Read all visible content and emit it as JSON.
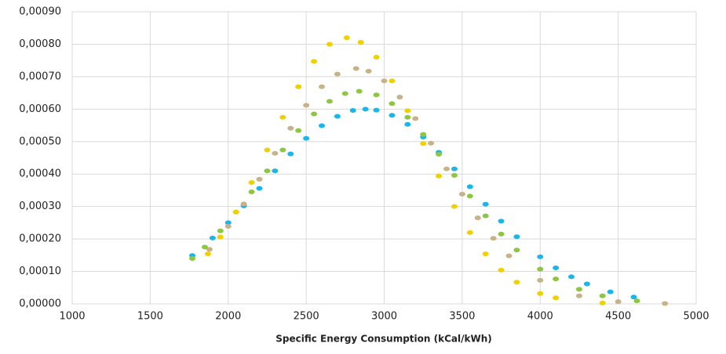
{
  "chart_data": {
    "type": "scatter",
    "xlabel": "Specific Energy Consumption (kCal/kWh)",
    "xlim": [
      1000,
      5000
    ],
    "xticks": [
      1000,
      1500,
      2000,
      2500,
      3000,
      3500,
      4000,
      4500,
      5000
    ],
    "ylim": [
      0,
      0.0009
    ],
    "yticks": [
      {
        "value": 0,
        "label": "0,00000"
      },
      {
        "value": 0.0001,
        "label": "0,00010"
      },
      {
        "value": 0.0002,
        "label": "0,00020"
      },
      {
        "value": 0.0003,
        "label": "0,00030"
      },
      {
        "value": 0.0004,
        "label": "0,00040"
      },
      {
        "value": 0.0005,
        "label": "0,00050"
      },
      {
        "value": 0.0006,
        "label": "0,00060"
      },
      {
        "value": 0.0007,
        "label": "0,00070"
      },
      {
        "value": 0.0008,
        "label": "0,00080"
      },
      {
        "value": 0.0009,
        "label": "0,00090"
      }
    ],
    "grid": true,
    "series": [
      {
        "color": "#1cb5e8",
        "x": [
          1770,
          1900,
          2000,
          2100,
          2200,
          2300,
          2400,
          2500,
          2600,
          2700,
          2800,
          2880,
          2950,
          3050,
          3150,
          3250,
          3350,
          3450,
          3550,
          3650,
          3750,
          3850,
          4000,
          4100,
          4200,
          4300,
          4450,
          4600
        ],
        "values": [
          0.000149,
          0.000203,
          0.00025,
          0.000302,
          0.000356,
          0.00041,
          0.000462,
          0.00051,
          0.000549,
          0.000578,
          0.000596,
          0.0006,
          0.000597,
          0.000581,
          0.000553,
          0.000514,
          0.000467,
          0.000416,
          0.000361,
          0.000307,
          0.000255,
          0.000207,
          0.000145,
          0.000111,
          8.34e-05,
          6.14e-05,
          3.7e-05,
          2.11e-05
        ]
      },
      {
        "color": "#c8b28a",
        "x": [
          1880,
          2000,
          2100,
          2200,
          2300,
          2400,
          2500,
          2600,
          2700,
          2820,
          2900,
          3000,
          3100,
          3200,
          3300,
          3400,
          3500,
          3600,
          3700,
          3800,
          4000,
          4250,
          4500,
          4800
        ],
        "values": [
          0.000168,
          0.000239,
          0.000308,
          0.000384,
          0.000464,
          0.000541,
          0.000612,
          0.000669,
          0.000708,
          0.000725,
          0.000717,
          0.000687,
          0.000637,
          0.000571,
          0.000495,
          0.000416,
          0.000338,
          0.000265,
          0.000202,
          0.000148,
          7.26e-05,
          2.47e-05,
          6.8e-06,
          1.1e-06
        ]
      },
      {
        "color": "#8dc63f",
        "x": [
          1770,
          1850,
          1950,
          2050,
          2150,
          2250,
          2350,
          2450,
          2550,
          2650,
          2750,
          2840,
          2950,
          3050,
          3150,
          3250,
          3350,
          3450,
          3550,
          3650,
          3750,
          3850,
          4000,
          4100,
          4250,
          4400,
          4620
        ],
        "values": [
          0.00014,
          0.000175,
          0.000225,
          0.000283,
          0.000345,
          0.00041,
          0.000474,
          0.000534,
          0.000585,
          0.000624,
          0.000648,
          0.000655,
          0.000644,
          0.000617,
          0.000575,
          0.000522,
          0.000461,
          0.000396,
          0.000332,
          0.000271,
          0.000215,
          0.000166,
          0.000107,
          7.7e-05,
          4.49e-05,
          2.46e-05,
          9.2e-06
        ]
      },
      {
        "color": "#f0d000",
        "x": [
          1870,
          1950,
          2050,
          2150,
          2250,
          2350,
          2450,
          2550,
          2650,
          2760,
          2850,
          2950,
          3050,
          3150,
          3250,
          3350,
          3450,
          3550,
          3650,
          3750,
          3850,
          4000,
          4100,
          4400
        ],
        "values": [
          0.000154,
          0.000206,
          0.000283,
          0.000374,
          0.000474,
          0.000575,
          0.000669,
          0.000747,
          0.0008,
          0.00082,
          0.000806,
          0.00076,
          0.000687,
          0.000595,
          0.000494,
          0.000394,
          0.0003,
          0.00022,
          0.000154,
          0.000104,
          6.7e-05,
          3.2e-05,
          1.86e-05,
          2.8e-06
        ]
      }
    ]
  }
}
